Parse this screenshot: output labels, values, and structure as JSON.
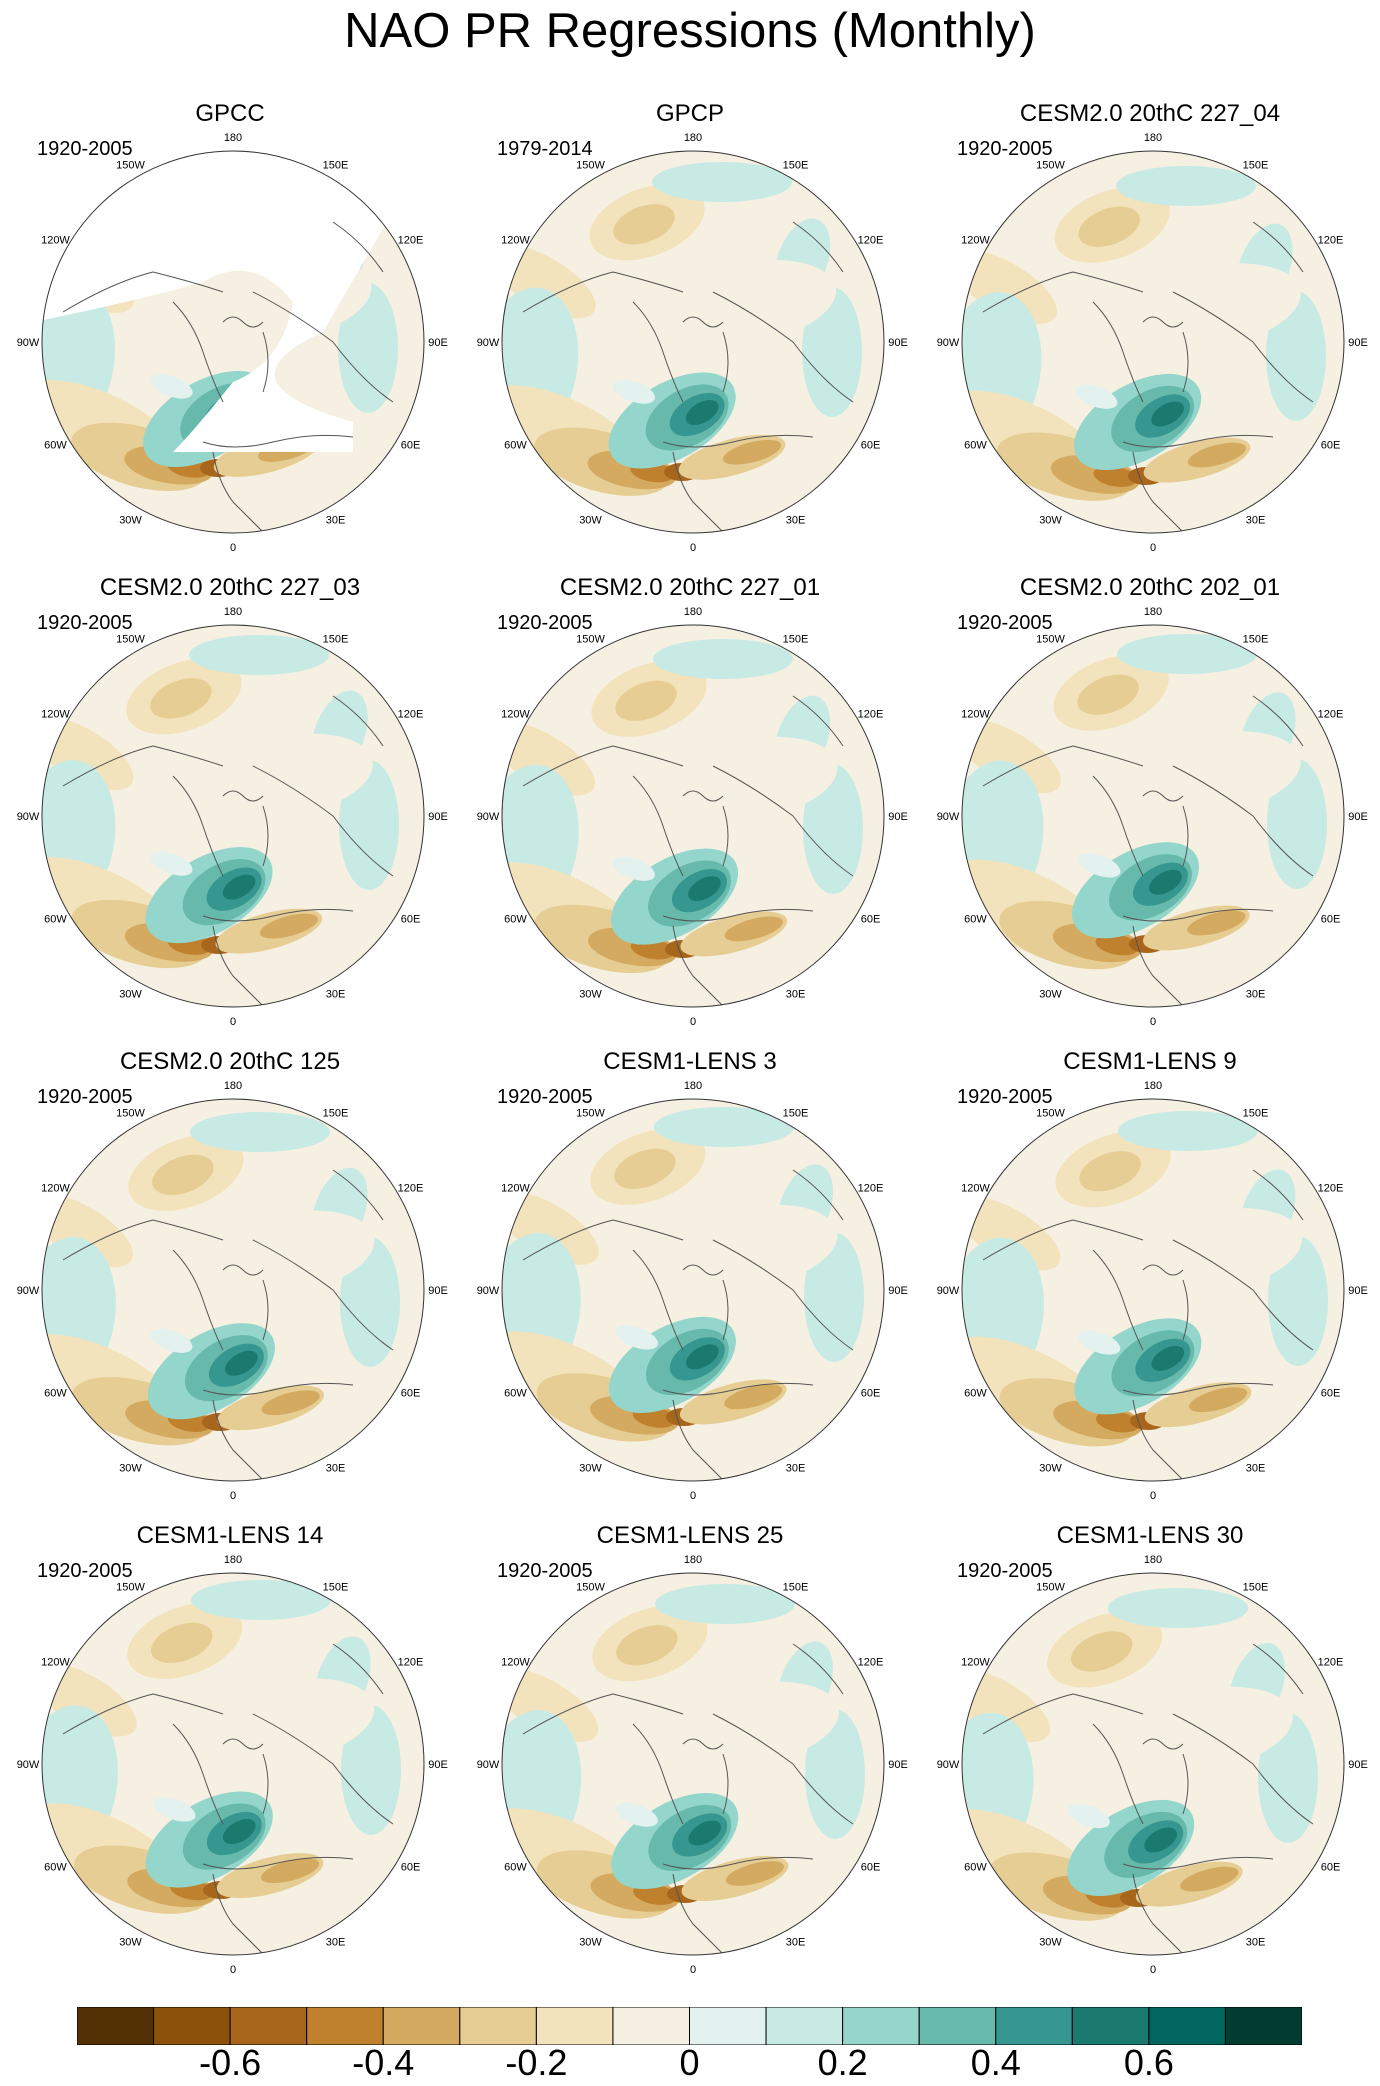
{
  "title": "NAO PR Regressions (Monthly)",
  "panels": [
    {
      "title": "GPCC",
      "period": "1920-2005",
      "mask": true
    },
    {
      "title": "GPCP",
      "period": "1979-2014"
    },
    {
      "title": "CESM2.0 20thC 227_04",
      "period": "1920-2005"
    },
    {
      "title": "CESM2.0 20thC 227_03",
      "period": "1920-2005"
    },
    {
      "title": "CESM2.0 20thC 227_01",
      "period": "1920-2005"
    },
    {
      "title": "CESM2.0 20thC 202_01",
      "period": "1920-2005"
    },
    {
      "title": "CESM2.0 20thC 125",
      "period": "1920-2005"
    },
    {
      "title": "CESM1-LENS 3",
      "period": "1920-2005"
    },
    {
      "title": "CESM1-LENS 9",
      "period": "1920-2005"
    },
    {
      "title": "CESM1-LENS 14",
      "period": "1920-2005"
    },
    {
      "title": "CESM1-LENS 25",
      "period": "1920-2005"
    },
    {
      "title": "CESM1-LENS 30",
      "period": "1920-2005"
    }
  ],
  "longitude_labels": [
    "180",
    "150E",
    "120E",
    "90E",
    "60E",
    "30E",
    "0",
    "30W",
    "60W",
    "90W",
    "120W",
    "150W"
  ],
  "colorbar": {
    "colors": [
      "#543005",
      "#8c510a",
      "#a8661d",
      "#bf812d",
      "#d3aa5f",
      "#e6cd94",
      "#f3e3bd",
      "#f5f0e1",
      "#e3f1ef",
      "#c7eae5",
      "#94d6cb",
      "#67b9ab",
      "#35978f",
      "#1a7a70",
      "#01665e",
      "#003c30"
    ],
    "tick_labels": [
      "-0.6",
      "-0.4",
      "-0.2",
      "0",
      "0.2",
      "0.4",
      "0.6"
    ]
  }
}
